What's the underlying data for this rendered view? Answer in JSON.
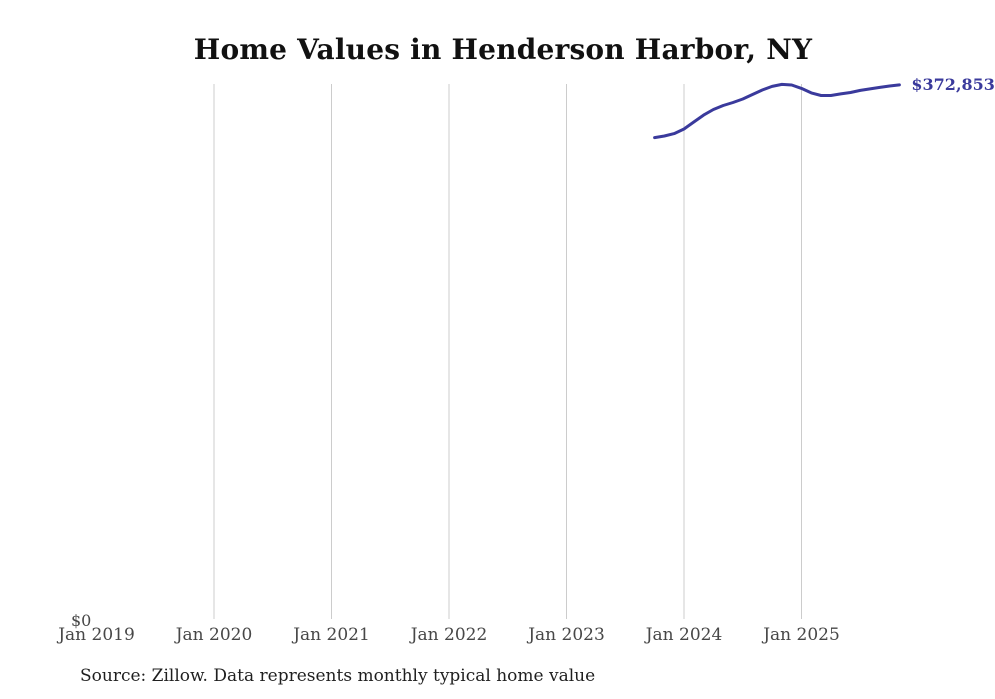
{
  "chart_data": {
    "type": "line",
    "title": "Home Values in Henderson Harbor, NY",
    "xlabel": "",
    "ylabel": "",
    "x_tick_labels": [
      "Jan 2019",
      "Jan 2020",
      "Jan 2021",
      "Jan 2022",
      "Jan 2023",
      "Jan 2024",
      "Jan 2025"
    ],
    "gridline_years": [
      2020,
      2021,
      2022,
      2023,
      2024,
      2025
    ],
    "y_tick_label": "$0",
    "end_label": "$372,853",
    "ylim": [
      0,
      373500
    ],
    "x_range": [
      "Jan 2019",
      "Dec 2025"
    ],
    "grid": "vertical-only",
    "legend": "none",
    "line_color": "#3a3a9c",
    "gridline_color": "#cccccc",
    "tick_label_color": "#474747",
    "series": [
      {
        "name": "Monthly typical home value",
        "points": [
          [
            "2023-10",
            336100
          ],
          [
            "2023-11",
            337200
          ],
          [
            "2023-12",
            338900
          ],
          [
            "2024-01",
            342100
          ],
          [
            "2024-02",
            347000
          ],
          [
            "2024-03",
            351800
          ],
          [
            "2024-04",
            355700
          ],
          [
            "2024-05",
            358500
          ],
          [
            "2024-06",
            360600
          ],
          [
            "2024-07",
            363000
          ],
          [
            "2024-08",
            366200
          ],
          [
            "2024-09",
            369300
          ],
          [
            "2024-10",
            371800
          ],
          [
            "2024-11",
            373200
          ],
          [
            "2024-12",
            372800
          ],
          [
            "2025-01",
            370400
          ],
          [
            "2025-02",
            367300
          ],
          [
            "2025-03",
            365500
          ],
          [
            "2025-04",
            365500
          ],
          [
            "2025-05",
            366600
          ],
          [
            "2025-06",
            367600
          ],
          [
            "2025-07",
            369000
          ],
          [
            "2025-08",
            370100
          ],
          [
            "2025-09",
            371100
          ],
          [
            "2025-10",
            372100
          ],
          [
            "2025-11",
            372853
          ]
        ]
      }
    ]
  },
  "footer": {
    "source_note": "Source: Zillow. Data represents monthly typical home value"
  }
}
